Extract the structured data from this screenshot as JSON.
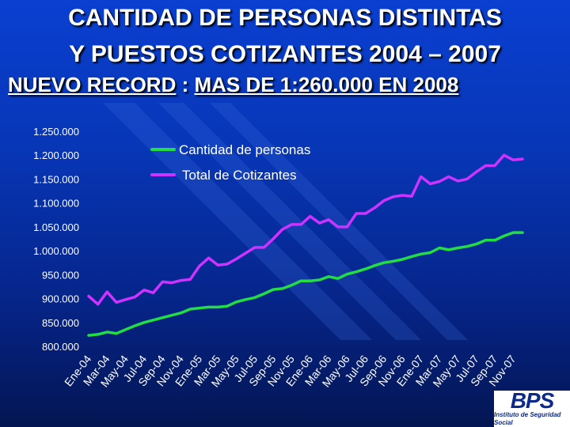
{
  "slide": {
    "title_line1": "CANTIDAD DE PERSONAS DISTINTAS",
    "title_line2": "Y PUESTOS COTIZANTES 2004 – 2007",
    "subtitle_part1": "NUEVO RECORD",
    "subtitle_sep": " : ",
    "subtitle_part2": "MAS DE 1:260.000 EN 2008"
  },
  "logo": {
    "mark": "BPS",
    "text": "Instituto de Seguridad Social"
  },
  "colors": {
    "background": "#0736b6",
    "personas": "#22dd44",
    "cotizantes": "#cc33ff",
    "text": "#ffffff"
  },
  "chart_data": {
    "type": "line",
    "ylim": [
      800000,
      1250000
    ],
    "yticks": [
      800000,
      850000,
      900000,
      950000,
      1000000,
      1050000,
      1100000,
      1150000,
      1200000,
      1250000
    ],
    "ytick_labels": [
      "800.000",
      "850.000",
      "900.000",
      "950.000",
      "1.000.000",
      "1.050.000",
      "1.100.000",
      "1.150.000",
      "1.200.000",
      "1.250.000"
    ],
    "categories": [
      "Ene-04",
      "Feb-04",
      "Mar-04",
      "Abr-04",
      "May-04",
      "Jun-04",
      "Jul-04",
      "Ago-04",
      "Sep-04",
      "Oct-04",
      "Nov-04",
      "Dic-04",
      "Ene-05",
      "Feb-05",
      "Mar-05",
      "Abr-05",
      "May-05",
      "Jun-05",
      "Jul-05",
      "Ago-05",
      "Sep-05",
      "Oct-05",
      "Nov-05",
      "Dic-05",
      "Ene-06",
      "Feb-06",
      "Mar-06",
      "Abr-06",
      "May-06",
      "Jun-06",
      "Jul-06",
      "Ago-06",
      "Sep-06",
      "Oct-06",
      "Nov-06",
      "Dic-06",
      "Ene-07",
      "Feb-07",
      "Mar-07",
      "Abr-07",
      "May-07",
      "Jun-07",
      "Jul-07",
      "Ago-07",
      "Sep-07",
      "Oct-07",
      "Nov-07",
      "Dic-07"
    ],
    "x_tick_labels": [
      "Ene-04",
      "Mar-04",
      "May-04",
      "Jul-04",
      "Sep-04",
      "Nov-04",
      "Ene-05",
      "Mar-05",
      "May-05",
      "Jul-05",
      "Sep-05",
      "Nov-05",
      "Ene-06",
      "Mar-06",
      "May-06",
      "Jul-06",
      "Sep-06",
      "Nov-06",
      "Ene-07",
      "Mar-07",
      "May-07",
      "Jul-07",
      "Sep-07",
      "Nov-07"
    ],
    "series": [
      {
        "name": "Cantidad de personas",
        "color": "#22dd44",
        "values": [
          823000,
          825000,
          830000,
          827000,
          835000,
          843000,
          850000,
          855000,
          860000,
          865000,
          870000,
          878000,
          880000,
          882000,
          882000,
          884000,
          893000,
          898000,
          902000,
          910000,
          919000,
          921000,
          928000,
          937000,
          937000,
          939000,
          946000,
          942000,
          951000,
          956000,
          962000,
          969000,
          975000,
          978000,
          982000,
          988000,
          993000,
          996000,
          1006000,
          1002000,
          1006000,
          1009000,
          1014000,
          1022000,
          1022000,
          1031000,
          1038000,
          1038000
        ]
      },
      {
        "name": "Total de Cotizantes",
        "color": "#cc33ff",
        "values": [
          905000,
          888000,
          914000,
          892000,
          898000,
          903000,
          918000,
          912000,
          935000,
          933000,
          938000,
          940000,
          968000,
          985000,
          970000,
          972000,
          983000,
          995000,
          1007000,
          1007000,
          1025000,
          1045000,
          1055000,
          1055000,
          1072000,
          1058000,
          1065000,
          1050000,
          1050000,
          1078000,
          1078000,
          1090000,
          1105000,
          1113000,
          1116000,
          1114000,
          1155000,
          1140000,
          1145000,
          1155000,
          1146000,
          1150000,
          1165000,
          1178000,
          1178000,
          1200000,
          1190000,
          1192000
        ]
      }
    ],
    "legend": "top-left"
  }
}
